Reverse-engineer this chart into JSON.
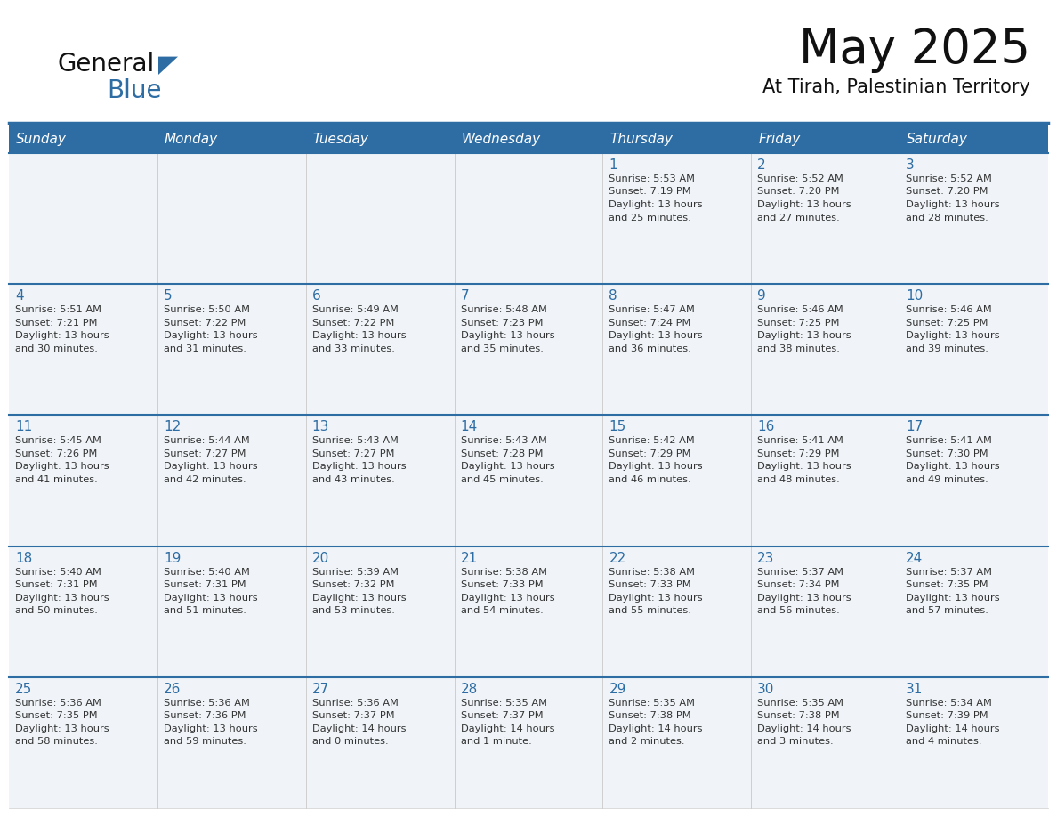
{
  "title": "May 2025",
  "subtitle": "At Tirah, Palestinian Territory",
  "days_of_week": [
    "Sunday",
    "Monday",
    "Tuesday",
    "Wednesday",
    "Thursday",
    "Friday",
    "Saturday"
  ],
  "header_bg": "#2E6DA4",
  "header_text": "#FFFFFF",
  "cell_bg": "#F0F4F8",
  "cell_bg_alt": "#FFFFFF",
  "day_number_color": "#2E6DA4",
  "info_text_color": "#333333",
  "border_color": "#2E6DA4",
  "row_separator_color": "#2E6DA4",
  "calendar_data": [
    [
      {
        "day": null,
        "sunrise": null,
        "sunset": null,
        "daylight": null
      },
      {
        "day": null,
        "sunrise": null,
        "sunset": null,
        "daylight": null
      },
      {
        "day": null,
        "sunrise": null,
        "sunset": null,
        "daylight": null
      },
      {
        "day": null,
        "sunrise": null,
        "sunset": null,
        "daylight": null
      },
      {
        "day": 1,
        "sunrise": "5:53 AM",
        "sunset": "7:19 PM",
        "daylight": "13 hours and 25 minutes."
      },
      {
        "day": 2,
        "sunrise": "5:52 AM",
        "sunset": "7:20 PM",
        "daylight": "13 hours and 27 minutes."
      },
      {
        "day": 3,
        "sunrise": "5:52 AM",
        "sunset": "7:20 PM",
        "daylight": "13 hours and 28 minutes."
      }
    ],
    [
      {
        "day": 4,
        "sunrise": "5:51 AM",
        "sunset": "7:21 PM",
        "daylight": "13 hours and 30 minutes."
      },
      {
        "day": 5,
        "sunrise": "5:50 AM",
        "sunset": "7:22 PM",
        "daylight": "13 hours and 31 minutes."
      },
      {
        "day": 6,
        "sunrise": "5:49 AM",
        "sunset": "7:22 PM",
        "daylight": "13 hours and 33 minutes."
      },
      {
        "day": 7,
        "sunrise": "5:48 AM",
        "sunset": "7:23 PM",
        "daylight": "13 hours and 35 minutes."
      },
      {
        "day": 8,
        "sunrise": "5:47 AM",
        "sunset": "7:24 PM",
        "daylight": "13 hours and 36 minutes."
      },
      {
        "day": 9,
        "sunrise": "5:46 AM",
        "sunset": "7:25 PM",
        "daylight": "13 hours and 38 minutes."
      },
      {
        "day": 10,
        "sunrise": "5:46 AM",
        "sunset": "7:25 PM",
        "daylight": "13 hours and 39 minutes."
      }
    ],
    [
      {
        "day": 11,
        "sunrise": "5:45 AM",
        "sunset": "7:26 PM",
        "daylight": "13 hours and 41 minutes."
      },
      {
        "day": 12,
        "sunrise": "5:44 AM",
        "sunset": "7:27 PM",
        "daylight": "13 hours and 42 minutes."
      },
      {
        "day": 13,
        "sunrise": "5:43 AM",
        "sunset": "7:27 PM",
        "daylight": "13 hours and 43 minutes."
      },
      {
        "day": 14,
        "sunrise": "5:43 AM",
        "sunset": "7:28 PM",
        "daylight": "13 hours and 45 minutes."
      },
      {
        "day": 15,
        "sunrise": "5:42 AM",
        "sunset": "7:29 PM",
        "daylight": "13 hours and 46 minutes."
      },
      {
        "day": 16,
        "sunrise": "5:41 AM",
        "sunset": "7:29 PM",
        "daylight": "13 hours and 48 minutes."
      },
      {
        "day": 17,
        "sunrise": "5:41 AM",
        "sunset": "7:30 PM",
        "daylight": "13 hours and 49 minutes."
      }
    ],
    [
      {
        "day": 18,
        "sunrise": "5:40 AM",
        "sunset": "7:31 PM",
        "daylight": "13 hours and 50 minutes."
      },
      {
        "day": 19,
        "sunrise": "5:40 AM",
        "sunset": "7:31 PM",
        "daylight": "13 hours and 51 minutes."
      },
      {
        "day": 20,
        "sunrise": "5:39 AM",
        "sunset": "7:32 PM",
        "daylight": "13 hours and 53 minutes."
      },
      {
        "day": 21,
        "sunrise": "5:38 AM",
        "sunset": "7:33 PM",
        "daylight": "13 hours and 54 minutes."
      },
      {
        "day": 22,
        "sunrise": "5:38 AM",
        "sunset": "7:33 PM",
        "daylight": "13 hours and 55 minutes."
      },
      {
        "day": 23,
        "sunrise": "5:37 AM",
        "sunset": "7:34 PM",
        "daylight": "13 hours and 56 minutes."
      },
      {
        "day": 24,
        "sunrise": "5:37 AM",
        "sunset": "7:35 PM",
        "daylight": "13 hours and 57 minutes."
      }
    ],
    [
      {
        "day": 25,
        "sunrise": "5:36 AM",
        "sunset": "7:35 PM",
        "daylight": "13 hours and 58 minutes."
      },
      {
        "day": 26,
        "sunrise": "5:36 AM",
        "sunset": "7:36 PM",
        "daylight": "13 hours and 59 minutes."
      },
      {
        "day": 27,
        "sunrise": "5:36 AM",
        "sunset": "7:37 PM",
        "daylight": "14 hours and 0 minutes."
      },
      {
        "day": 28,
        "sunrise": "5:35 AM",
        "sunset": "7:37 PM",
        "daylight": "14 hours and 1 minute."
      },
      {
        "day": 29,
        "sunrise": "5:35 AM",
        "sunset": "7:38 PM",
        "daylight": "14 hours and 2 minutes."
      },
      {
        "day": 30,
        "sunrise": "5:35 AM",
        "sunset": "7:38 PM",
        "daylight": "14 hours and 3 minutes."
      },
      {
        "day": 31,
        "sunrise": "5:34 AM",
        "sunset": "7:39 PM",
        "daylight": "14 hours and 4 minutes."
      }
    ]
  ],
  "logo_text1": "General",
  "logo_text2": "Blue",
  "logo_color1": "#111111",
  "logo_color2": "#2E6DA4",
  "logo_triangle_color": "#2E6DA4",
  "title_fontsize": 38,
  "subtitle_fontsize": 15,
  "header_fontsize": 11,
  "day_num_fontsize": 11,
  "info_fontsize": 8.2
}
